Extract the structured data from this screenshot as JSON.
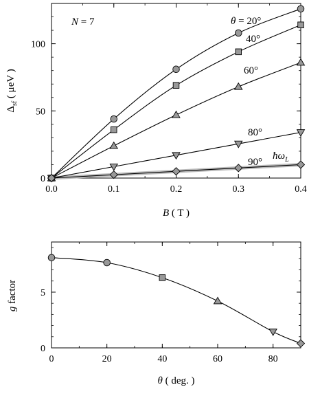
{
  "chart_data": [
    {
      "type": "line",
      "xlabel_var": "B",
      "xlabel_unit": "( T )",
      "ylabel_sym": "Δ",
      "ylabel_sub": "sf",
      "ylabel_unit": "( μeV )",
      "xlim": [
        0,
        0.4
      ],
      "ylim": [
        0,
        130
      ],
      "xticks": [
        0.0,
        0.1,
        0.2,
        0.3,
        0.4
      ],
      "xtick_labels": [
        "0.0",
        "0.1",
        "0.2",
        "0.3",
        "0.4"
      ],
      "yticks": [
        0,
        50,
        100
      ],
      "ytick_labels": [
        "0",
        "50",
        "100"
      ],
      "grid": false,
      "annotation": "N = 7",
      "hbar_label": "ħω",
      "hbar_sub": "L",
      "hbar_line": {
        "x": [
          0,
          0.4
        ],
        "y": [
          0,
          10
        ]
      },
      "series": [
        {
          "name": "θ = 20°",
          "marker": "circle",
          "x": [
            0,
            0.1,
            0.2,
            0.3,
            0.4
          ],
          "y": [
            0,
            44,
            81,
            108,
            126
          ]
        },
        {
          "name": "40°",
          "marker": "square",
          "x": [
            0,
            0.1,
            0.2,
            0.3,
            0.4
          ],
          "y": [
            0,
            36,
            69,
            94,
            114
          ]
        },
        {
          "name": "60°",
          "marker": "triangle",
          "x": [
            0,
            0.1,
            0.2,
            0.3,
            0.4
          ],
          "y": [
            0,
            24,
            47,
            68,
            86
          ]
        },
        {
          "name": "80°",
          "marker": "tri-down",
          "x": [
            0,
            0.1,
            0.2,
            0.3,
            0.4
          ],
          "y": [
            0,
            8.5,
            17,
            25.5,
            34
          ]
        },
        {
          "name": "90°",
          "marker": "diamond",
          "x": [
            0,
            0.1,
            0.2,
            0.3,
            0.4
          ],
          "y": [
            0,
            2.5,
            5,
            7.5,
            10
          ]
        }
      ]
    },
    {
      "type": "line",
      "xlabel_var": "θ",
      "xlabel_unit": "( deg. )",
      "ylabel_var": "g",
      "ylabel_rest": " factor",
      "xlim": [
        0,
        90
      ],
      "ylim": [
        0,
        9.5
      ],
      "xticks": [
        0,
        20,
        40,
        60,
        80
      ],
      "xtick_labels": [
        "0",
        "20",
        "40",
        "60",
        "80"
      ],
      "yticks": [
        0,
        5
      ],
      "ytick_labels": [
        "0",
        "5"
      ],
      "grid": false,
      "series": [
        {
          "x": [
            0,
            20,
            40,
            60,
            80,
            90
          ],
          "y": [
            8.1,
            7.65,
            6.3,
            4.2,
            1.45,
            0.4
          ],
          "markers": [
            "circle",
            "circle",
            "square",
            "triangle",
            "tri-down",
            "diamond"
          ]
        }
      ]
    }
  ],
  "style": {
    "marker_fill": "#999999",
    "line_color": "#000000",
    "hbar_color": "#bbbbbb"
  }
}
